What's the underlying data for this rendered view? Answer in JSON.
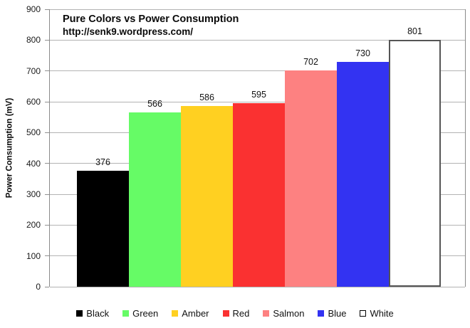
{
  "chart_data": {
    "type": "bar",
    "title": "Pure Colors vs Power Consumption",
    "subtitle": "http://senk9.wordpress.com/",
    "ylabel": "Power Consumption (mV)",
    "xlabel": "",
    "categories": [
      "Black",
      "Green",
      "Amber",
      "Red",
      "Salmon",
      "Blue",
      "White"
    ],
    "values": [
      376,
      566,
      586,
      595,
      702,
      730,
      801
    ],
    "bar_colors": [
      "#000000",
      "#66FB66",
      "#FFD021",
      "#FA3131",
      "#FD8181",
      "#3333F2",
      "#FFFFFF"
    ],
    "white_bar_border_color": "#555555",
    "ylim": [
      0,
      900
    ],
    "yticks": [
      0,
      100,
      200,
      300,
      400,
      500,
      600,
      700,
      800,
      900
    ],
    "grid": "horizontal",
    "gridline_color": "#b3b3b3",
    "axis_color": "#8a8a8a",
    "legend_position": "bottom",
    "legend_white_swatch_border": "#000000",
    "background": "#ffffff",
    "text_color": "#111111"
  }
}
